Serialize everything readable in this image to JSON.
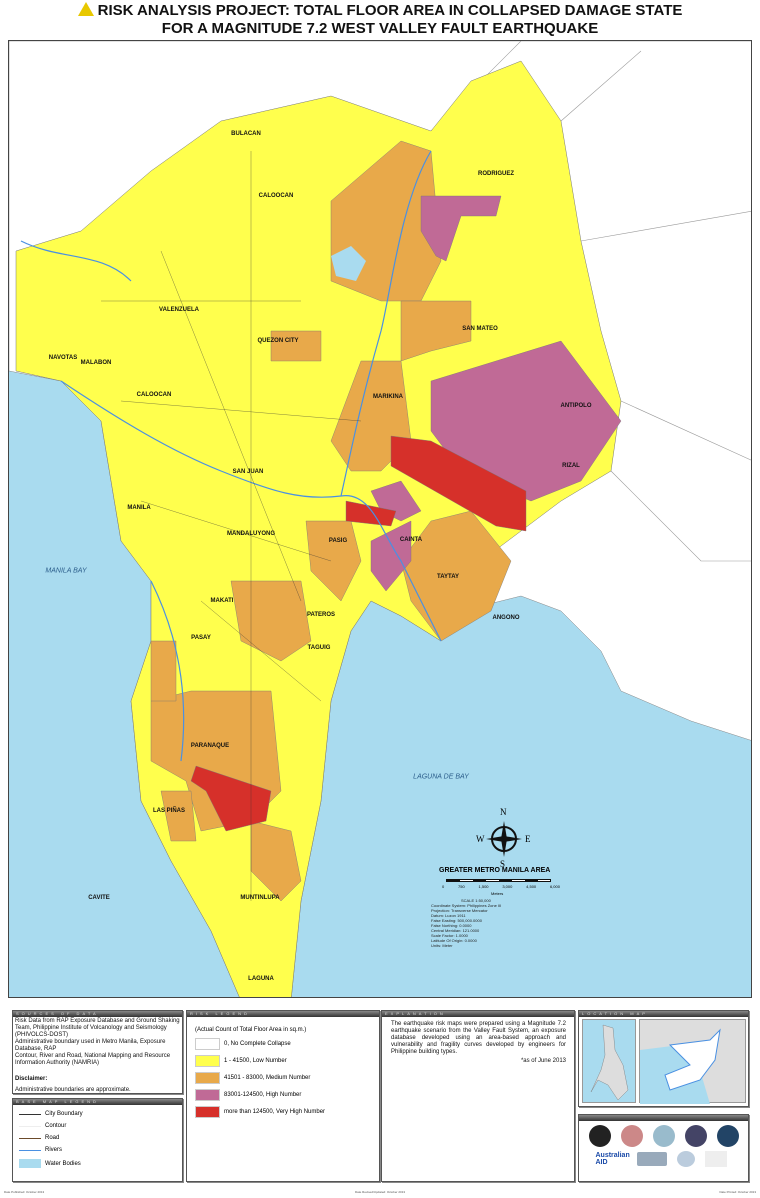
{
  "title": {
    "line1": "RISK ANALYSIS PROJECT: TOTAL FLOOR AREA IN COLLAPSED DAMAGE STATE",
    "line2": "FOR A MAGNITUDE 7.2 WEST VALLEY FAULT EARTHQUAKE",
    "icon": "warning-triangle-icon"
  },
  "colors": {
    "none": "#ffffff",
    "low": "#ffff4d",
    "medium": "#e8a94a",
    "high": "#c06a96",
    "very_high": "#d6302a",
    "water": "#a9dbef",
    "river": "#4a90e2"
  },
  "places": [
    "BULACAN",
    "CALOOCAN",
    "RODRIGUEZ",
    "VALENZUELA",
    "SAN MATEO",
    "QUEZON CITY",
    "NAVOTAS",
    "MALABON",
    "CALOOCAN",
    "MARIKINA",
    "ANTIPOLO",
    "RIZAL",
    "SAN JUAN",
    "MANILA",
    "MANDALUYONG",
    "PASIG",
    "CAINTA",
    "TAYTAY",
    "MAKATI",
    "PATEROS",
    "ANGONO",
    "PASAY",
    "TAGUIG",
    "PARANAQUE",
    "LAS PIÑAS",
    "CAVITE",
    "MUNTINLUPA",
    "LAGUNA"
  ],
  "water_labels": [
    "MANILA BAY",
    "LAGUNA DE BAY"
  ],
  "compass": {
    "n": "N",
    "s": "S",
    "e": "E",
    "w": "W"
  },
  "area_title": "GREATER METRO MANILA AREA",
  "scale_bar": {
    "ticks": [
      "0",
      "750",
      "1,500",
      "3,000",
      "4,500",
      "6,000"
    ],
    "unit": "Meters"
  },
  "projection": [
    "SCALE 1:50,000",
    "Coordinate System: Philippines Zone III",
    "Projection: Transverse Mercator",
    "Datum: Luzon 1911",
    "False Easting: 500,000.0000",
    "False Northing: 0.0000",
    "Central Meridian: 121.0000",
    "Scale Factor: 1.0000",
    "Latitude Of Origin: 0.0000",
    "Units: Meter"
  ],
  "sources": {
    "header": "SOURCES OF DATA",
    "lines": [
      "Risk Data from RAP Exposure Database and Ground Shaking Team, Philippine Institute of Volcanology and Seismology (PHIVOLCS-DOST)",
      "Administrative boundary used in Metro Manila, Exposure Database, RAP",
      "Contour, River and Road, National Mapping and Resource Information Authority (NAMRIA)"
    ],
    "disclaimer_title": "Disclaimer:",
    "disclaimer": "Administrative boundaries are approximate."
  },
  "base_legend": {
    "header": "BASE MAP LEGEND",
    "items": [
      "City Boundary",
      "Contour",
      "Road",
      "Rivers",
      "Water Bodies"
    ]
  },
  "risk_legend": {
    "header": "RISK LEGEND",
    "subtitle": "(Actual Count of Total Floor Area in sq.m.)",
    "items": [
      "0, No Complete Collapse",
      "1 - 41500, Low Number",
      "41501 - 83000, Medium Number",
      "83001-124500, High Number",
      "more than 124500, Very High Number"
    ]
  },
  "explanation": {
    "header": "EXPLANATION",
    "text": "The earthquake risk maps were prepared using a Magnitude 7.2 earthquake scenario from the Valley Fault System, an exposure database developed using an area-based approach and vulnerability and fragility curves developed by engineers for Philippine building types.",
    "note": "*as of June 2013"
  },
  "location_map": {
    "header": "LOCATION MAP"
  },
  "logos": {
    "aus_aid": "Australian AID"
  },
  "footer": {
    "left": "Date Published: October 2013",
    "mid": "Date Revised/Updated: October 2013",
    "right": "Date Printed: October 2013"
  }
}
